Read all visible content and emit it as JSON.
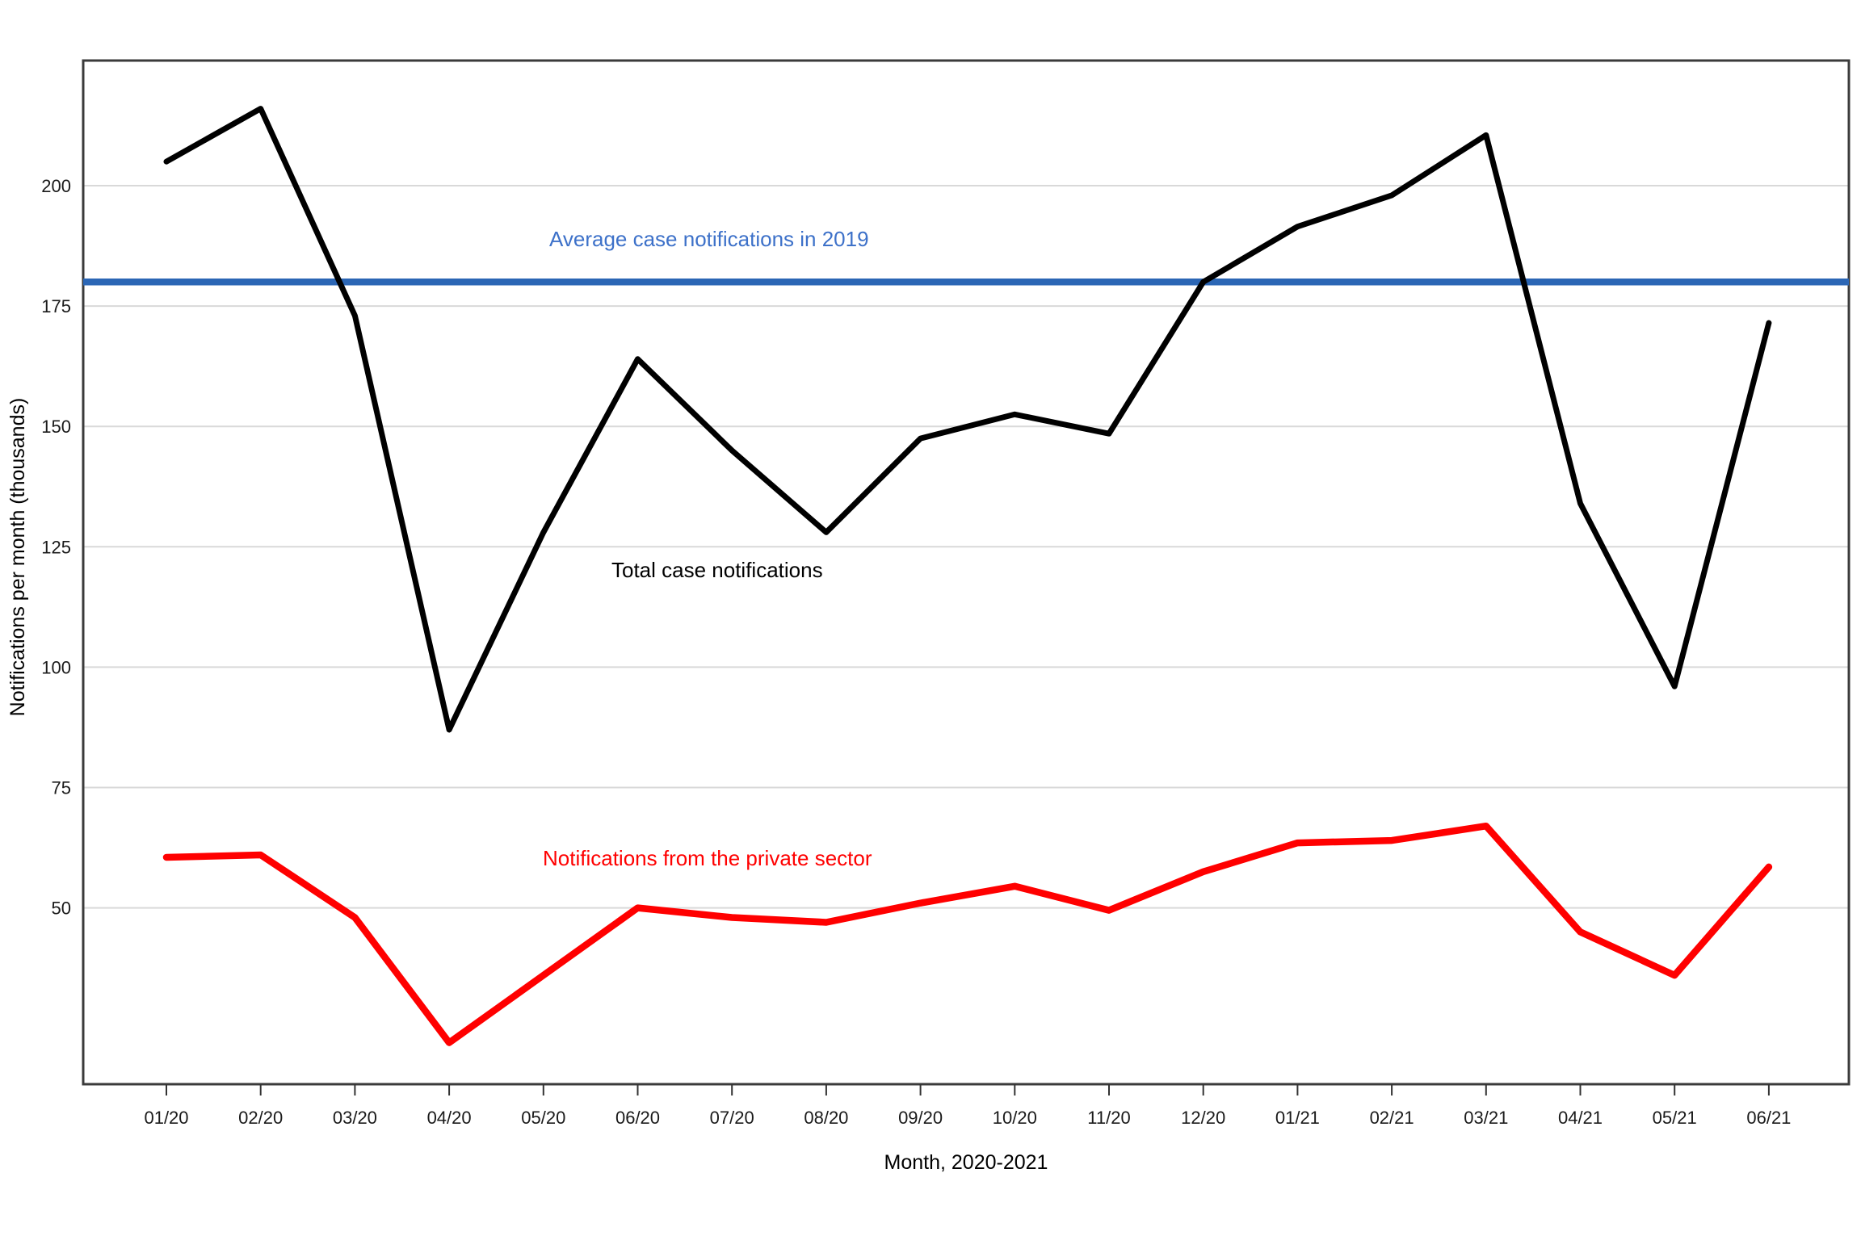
{
  "chart_data": {
    "type": "line",
    "title": "",
    "xlabel": "Month, 2020-2021",
    "ylabel": "Notifications per month (thousands)",
    "categories": [
      "01/20",
      "02/20",
      "03/20",
      "04/20",
      "05/20",
      "06/20",
      "07/20",
      "08/20",
      "09/20",
      "10/20",
      "11/20",
      "12/20",
      "01/21",
      "02/21",
      "03/21",
      "04/21",
      "05/21",
      "06/21"
    ],
    "yticks": [
      50,
      75,
      100,
      125,
      150,
      175,
      200
    ],
    "ylim": [
      13,
      226
    ],
    "grid": "horizontal",
    "legend_position": "none",
    "series": [
      {
        "name": "Total case notifications",
        "color": "#000000",
        "values": [
          205,
          216,
          173,
          87,
          128,
          164,
          145,
          128,
          147.5,
          152.5,
          148.5,
          180,
          191.5,
          198,
          210.5,
          134,
          96,
          171.5
        ]
      },
      {
        "name": "Notifications from the private sector",
        "color": "#ff0000",
        "values": [
          60.5,
          61,
          48,
          22,
          36,
          50,
          48,
          47,
          51,
          54.5,
          49.5,
          57.5,
          63.5,
          64,
          67,
          45,
          36,
          58.5
        ]
      }
    ],
    "reference_line": {
      "label": "Average case notifications in 2019",
      "value": 180,
      "line_color": "#2b66b5",
      "label_color": "#3d71c9"
    },
    "colors": {
      "grid": "#d9d9d9",
      "axis_border": "#3b3b3b",
      "tick_mark": "#333333",
      "background": "#ffffff"
    }
  }
}
